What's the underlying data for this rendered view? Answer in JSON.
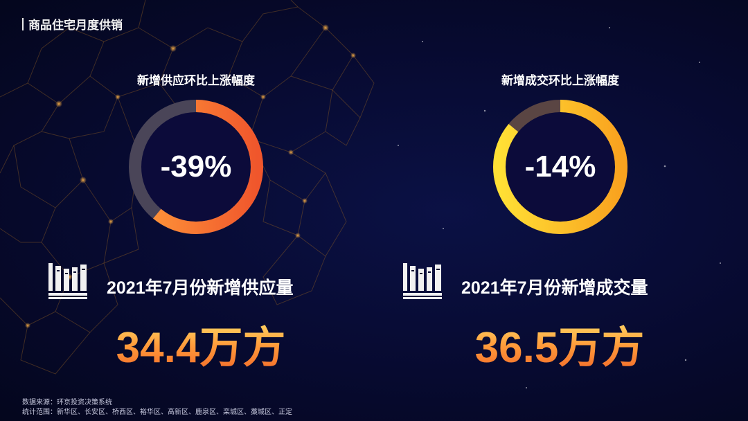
{
  "page_title": "商品住宅月度供销",
  "panels": [
    {
      "ring_title": "新增供应环比上涨幅度",
      "ring_value": "-39%",
      "ring_percent": 39,
      "ring_colors": {
        "start": "#ff9a3a",
        "end": "#f0562c",
        "track": "#4a4558"
      },
      "stat_icon": "books-icon",
      "stat_label": "2021年7月份新增供应量",
      "stat_value": "34.4万方"
    },
    {
      "ring_title": "新增成交环比上涨幅度",
      "ring_value": "-14%",
      "ring_percent": 14,
      "ring_colors": {
        "start": "#ffe035",
        "end": "#f9a21f",
        "track": "#5a4543"
      },
      "stat_icon": "books-icon",
      "stat_label": "2021年7月份新增成交量",
      "stat_value": "36.5万方"
    }
  ],
  "footer": {
    "source": "数据来源：环京投资决策系统",
    "scope": "统计范围：新华区、长安区、桥西区、裕华区、高新区、鹿泉区、栾城区、藁城区、正定"
  },
  "colors": {
    "background": "#070a30",
    "accent_orange": "#f26a2a",
    "accent_yellow": "#ffd060"
  }
}
